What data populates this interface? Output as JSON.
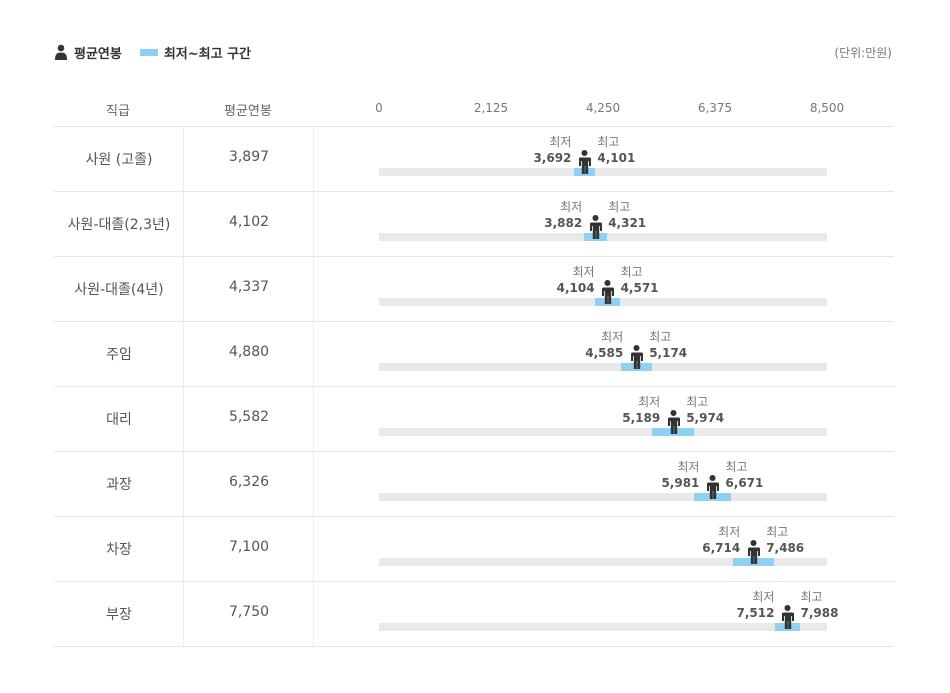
{
  "legend": {
    "avg_label": "평균연봉",
    "range_label": "최저~최고 구간",
    "unit": "(단위:만원)"
  },
  "table": {
    "col_rank": "직급",
    "col_avg": "평균연봉",
    "min_text": "최저",
    "max_text": "최고"
  },
  "colors": {
    "range": "#8fd0f5",
    "track": "#e9e9e9",
    "figure": "#333333"
  },
  "chart_data": {
    "type": "range-bar",
    "xlim": [
      0,
      8500
    ],
    "ticks": [
      "0",
      "2,125",
      "4,250",
      "6,375",
      "8,500"
    ],
    "tick_values": [
      0,
      2125,
      4250,
      6375,
      8500
    ],
    "rows": [
      {
        "rank": "사원 (고졸)",
        "avg": 3897,
        "avg_label": "3,897",
        "min": 3692,
        "min_label": "3,692",
        "max": 4101,
        "max_label": "4,101"
      },
      {
        "rank": "사원-대졸(2,3년)",
        "avg": 4102,
        "avg_label": "4,102",
        "min": 3882,
        "min_label": "3,882",
        "max": 4321,
        "max_label": "4,321"
      },
      {
        "rank": "사원-대졸(4년)",
        "avg": 4337,
        "avg_label": "4,337",
        "min": 4104,
        "min_label": "4,104",
        "max": 4571,
        "max_label": "4,571"
      },
      {
        "rank": "주임",
        "avg": 4880,
        "avg_label": "4,880",
        "min": 4585,
        "min_label": "4,585",
        "max": 5174,
        "max_label": "5,174"
      },
      {
        "rank": "대리",
        "avg": 5582,
        "avg_label": "5,582",
        "min": 5189,
        "min_label": "5,189",
        "max": 5974,
        "max_label": "5,974"
      },
      {
        "rank": "과장",
        "avg": 6326,
        "avg_label": "6,326",
        "min": 5981,
        "min_label": "5,981",
        "max": 6671,
        "max_label": "6,671"
      },
      {
        "rank": "차장",
        "avg": 7100,
        "avg_label": "7,100",
        "min": 6714,
        "min_label": "6,714",
        "max": 7486,
        "max_label": "7,486"
      },
      {
        "rank": "부장",
        "avg": 7750,
        "avg_label": "7,750",
        "min": 7512,
        "min_label": "7,512",
        "max": 7988,
        "max_label": "7,988"
      }
    ]
  }
}
